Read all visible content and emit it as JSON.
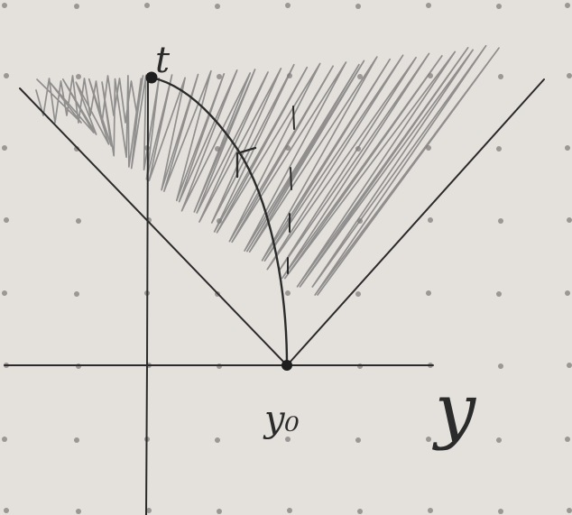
{
  "figure": {
    "paper_color": "#e4e1dd",
    "ink_color": "#2b2b2b",
    "shade_color": "#7b7b7b",
    "dot_color": "#9a9794",
    "labels": {
      "time_axis": "t",
      "space_axis": "y",
      "point": "y₀"
    }
  }
}
